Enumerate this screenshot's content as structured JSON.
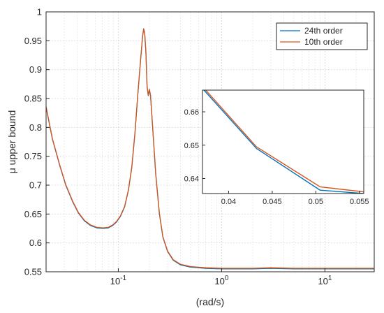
{
  "chart_data": [
    {
      "type": "line",
      "xlabel": "(rad/s)",
      "ylabel": "μ upper bound",
      "xscale": "log",
      "xlim": [
        0.02,
        30
      ],
      "ylim": [
        0.55,
        1.0
      ],
      "grid": true,
      "legend": {
        "placement": "top-right",
        "entries": [
          "24th order",
          "10th order"
        ]
      },
      "y_ticks": [
        "0.55",
        "0.6",
        "0.65",
        "0.7",
        "0.75",
        "0.8",
        "0.85",
        "0.9",
        "0.95",
        "1"
      ],
      "x_ticks": [
        {
          "base": "10",
          "exp": "-1",
          "value": 0.1
        },
        {
          "base": "10",
          "exp": "0",
          "value": 1
        },
        {
          "base": "10",
          "exp": "1",
          "value": 10
        }
      ],
      "series": [
        {
          "name": "24th order",
          "color": "#0072bd",
          "points": [
            [
              0.02,
              0.835
            ],
            [
              0.023,
              0.78
            ],
            [
              0.027,
              0.735
            ],
            [
              0.031,
              0.7
            ],
            [
              0.036,
              0.672
            ],
            [
              0.041,
              0.652
            ],
            [
              0.047,
              0.638
            ],
            [
              0.054,
              0.63
            ],
            [
              0.062,
              0.626
            ],
            [
              0.071,
              0.625
            ],
            [
              0.08,
              0.626
            ],
            [
              0.088,
              0.63
            ],
            [
              0.096,
              0.636
            ],
            [
              0.105,
              0.646
            ],
            [
              0.115,
              0.662
            ],
            [
              0.125,
              0.69
            ],
            [
              0.135,
              0.73
            ],
            [
              0.145,
              0.79
            ],
            [
              0.155,
              0.86
            ],
            [
              0.165,
              0.92
            ],
            [
              0.172,
              0.958
            ],
            [
              0.176,
              0.97
            ],
            [
              0.18,
              0.963
            ],
            [
              0.185,
              0.93
            ],
            [
              0.19,
              0.87
            ],
            [
              0.195,
              0.855
            ],
            [
              0.2,
              0.865
            ],
            [
              0.205,
              0.855
            ],
            [
              0.215,
              0.8
            ],
            [
              0.23,
              0.72
            ],
            [
              0.25,
              0.65
            ],
            [
              0.27,
              0.61
            ],
            [
              0.3,
              0.585
            ],
            [
              0.34,
              0.57
            ],
            [
              0.4,
              0.562
            ],
            [
              0.5,
              0.558
            ],
            [
              0.7,
              0.556
            ],
            [
              1,
              0.555
            ],
            [
              2,
              0.555
            ],
            [
              3,
              0.556
            ],
            [
              5,
              0.555
            ],
            [
              10,
              0.555
            ],
            [
              20,
              0.555
            ],
            [
              30,
              0.555
            ]
          ]
        },
        {
          "name": "10th order",
          "color": "#d95319",
          "points": [
            [
              0.02,
              0.836
            ],
            [
              0.023,
              0.781
            ],
            [
              0.027,
              0.736
            ],
            [
              0.031,
              0.701
            ],
            [
              0.036,
              0.673
            ],
            [
              0.041,
              0.653
            ],
            [
              0.047,
              0.639
            ],
            [
              0.054,
              0.631
            ],
            [
              0.062,
              0.627
            ],
            [
              0.071,
              0.626
            ],
            [
              0.08,
              0.627
            ],
            [
              0.088,
              0.631
            ],
            [
              0.096,
              0.637
            ],
            [
              0.105,
              0.647
            ],
            [
              0.115,
              0.663
            ],
            [
              0.125,
              0.691
            ],
            [
              0.135,
              0.731
            ],
            [
              0.145,
              0.791
            ],
            [
              0.155,
              0.861
            ],
            [
              0.165,
              0.921
            ],
            [
              0.172,
              0.959
            ],
            [
              0.176,
              0.971
            ],
            [
              0.18,
              0.964
            ],
            [
              0.185,
              0.931
            ],
            [
              0.19,
              0.871
            ],
            [
              0.195,
              0.856
            ],
            [
              0.2,
              0.866
            ],
            [
              0.205,
              0.856
            ],
            [
              0.215,
              0.801
            ],
            [
              0.23,
              0.721
            ],
            [
              0.25,
              0.651
            ],
            [
              0.27,
              0.611
            ],
            [
              0.3,
              0.586
            ],
            [
              0.34,
              0.571
            ],
            [
              0.4,
              0.563
            ],
            [
              0.5,
              0.559
            ],
            [
              0.7,
              0.557
            ],
            [
              1,
              0.556
            ],
            [
              2,
              0.556
            ],
            [
              3,
              0.557
            ],
            [
              5,
              0.556
            ],
            [
              10,
              0.556
            ],
            [
              20,
              0.556
            ],
            [
              30,
              0.556
            ]
          ]
        }
      ]
    },
    {
      "type": "line",
      "role": "inset",
      "xscale": "linear",
      "xlim": [
        0.037,
        0.0555
      ],
      "ylim": [
        0.6355,
        0.6665
      ],
      "grid": false,
      "x_ticks": [
        "0.04",
        "0.045",
        "0.05",
        "0.055"
      ],
      "y_ticks": [
        "0.64",
        "0.65",
        "0.66"
      ],
      "series": [
        {
          "name": "24th order",
          "color": "#0072bd",
          "points": [
            [
              0.037,
              0.667
            ],
            [
              0.0432,
              0.649
            ],
            [
              0.0505,
              0.6365
            ],
            [
              0.0555,
              0.6355
            ]
          ]
        },
        {
          "name": "10th order",
          "color": "#d95319",
          "points": [
            [
              0.0372,
              0.667
            ],
            [
              0.0432,
              0.6495
            ],
            [
              0.0505,
              0.6375
            ],
            [
              0.0555,
              0.636
            ]
          ]
        }
      ]
    }
  ]
}
